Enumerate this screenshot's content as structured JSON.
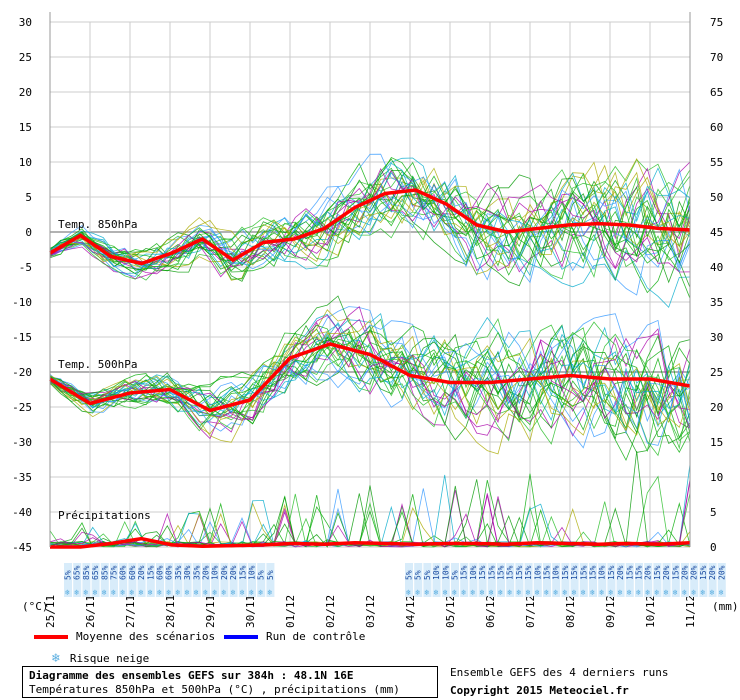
{
  "chart_data": {
    "type": "line",
    "title": "Diagramme des ensembles GEFS sur 384h : 48.1N 16E",
    "subtitle": "Températures 850hPa et 500hPa (°C) , précipitations (mm)",
    "left_axis": {
      "label": "(°C)",
      "ylim": [
        -45,
        30
      ],
      "ticks": [
        30,
        25,
        20,
        15,
        10,
        5,
        0,
        -5,
        -10,
        -15,
        -20,
        -25,
        -30,
        -35,
        -40,
        -45
      ]
    },
    "right_axis": {
      "label": "(mm)",
      "ylim": [
        0,
        75
      ],
      "ticks": [
        75,
        70,
        65,
        60,
        55,
        50,
        45,
        40,
        35,
        30,
        25,
        20,
        15,
        10,
        5,
        0
      ]
    },
    "x_dates": [
      "25/11",
      "26/11",
      "27/11",
      "28/11",
      "29/11",
      "30/11",
      "01/12",
      "02/12",
      "03/12",
      "04/12",
      "05/12",
      "06/12",
      "07/12",
      "08/12",
      "09/12",
      "10/12",
      "11/12"
    ],
    "grid": true,
    "panel_labels": {
      "t850": "Temp. 850hPa",
      "t500": "Temp. 500hPa",
      "precip": "Précipitations"
    },
    "mean_t850": [
      -3.0,
      -0.5,
      -3.5,
      -4.5,
      -3.0,
      -1.0,
      -4.0,
      -1.5,
      -1.0,
      0.5,
      3.5,
      5.5,
      6.0,
      4.0,
      1.0,
      0.0,
      0.5,
      1.0,
      1.2,
      1.0,
      0.5,
      0.3
    ],
    "mean_t500": [
      -21,
      -24.5,
      -23,
      -22.5,
      -25.5,
      -24,
      -18,
      -16,
      -17.5,
      -20.5,
      -21.5,
      -21.5,
      -21,
      -20.5,
      -21,
      -21,
      -22
    ],
    "mean_precip": [
      0,
      0,
      0.5,
      1.2,
      0.3,
      0.1,
      0.2,
      0.3,
      0.5,
      0.4,
      0.6,
      0.5,
      0.4,
      0.5,
      0.5,
      0.4,
      0.6,
      0.5,
      0.4,
      0.5,
      0.4,
      0.6
    ],
    "snow_risk_first": [
      "5%",
      "65%",
      "85%",
      "65%",
      "85%",
      "75%",
      "60%",
      "60%",
      "20%",
      "15%",
      "60%",
      "60%",
      "35%",
      "30%",
      "35%",
      "20%",
      "10%",
      "20%",
      "20%",
      "15%",
      "10%",
      "5%",
      "5%"
    ],
    "snow_risk_second": [
      "5%",
      "5%",
      "5%",
      "10%",
      "10%",
      "5%",
      "15%",
      "10%",
      "15%",
      "15%",
      "15%",
      "15%",
      "15%",
      "15%",
      "10%",
      "15%",
      "10%",
      "15%",
      "15%",
      "15%",
      "15%",
      "10%",
      "15%",
      "20%",
      "15%",
      "15%",
      "20%",
      "15%",
      "20%",
      "15%",
      "20%",
      "20%",
      "15%",
      "20%",
      "20%"
    ]
  },
  "legend": {
    "mean_label": "Moyenne des scénarios",
    "mean_color": "#ff0000",
    "control_label": "Run de contrôle",
    "control_color": "#0000ff",
    "snow_label": "Risque neige",
    "snow_icon": "snowflake-icon"
  },
  "footer": {
    "title": "Diagramme des ensembles GEFS sur 384h : 48.1N 16E",
    "subtitle": "Températures 850hPa et 500hPa (°C) , précipitations (mm)",
    "ensemble_note": "Ensemble GEFS des 4 derniers runs",
    "copyright": "Copyright 2015 Meteociel.fr"
  },
  "colors": {
    "ensemble": [
      "#00aa00",
      "#22bb22",
      "#009900",
      "#aa00aa",
      "#00aacc",
      "#aaaa00",
      "#3399ff"
    ],
    "grid": "#cccccc"
  }
}
